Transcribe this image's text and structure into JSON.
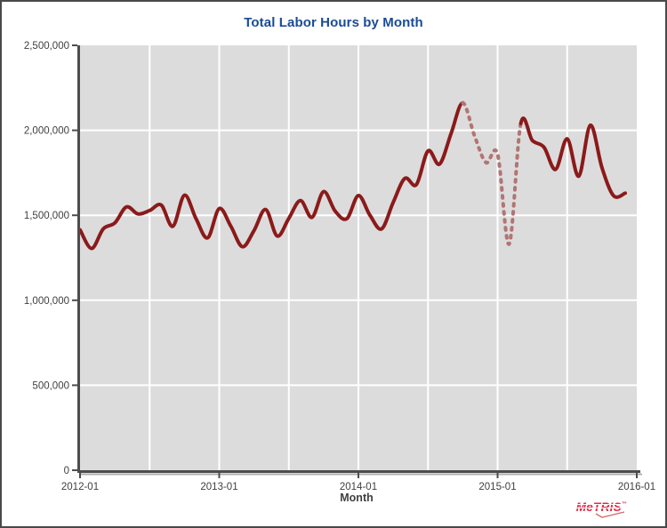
{
  "colors": {
    "canvas_border": "#4A4A4A",
    "title": "#1A4B96",
    "plot_bg": "#DCDCDC",
    "grid": "#FFFFFF",
    "axis": "#4D4D4D",
    "axis_shadow": "#AFAFAF",
    "tick_label": "#3F3F3F",
    "line": "#8B1A1A",
    "line_dashed": "#B27474",
    "logo": "#E22A46"
  },
  "chart_data": {
    "type": "line",
    "title": "Total Labor Hours by Month",
    "xlabel": "Month",
    "ylabel": "",
    "ylim": [
      0,
      2500000
    ],
    "x_axis_months_total": 48,
    "legend": "none",
    "grid": "on",
    "gridlines": {
      "vertical_every_months": 6,
      "horizontal_every": 500000,
      "color": "#FFFFFF"
    },
    "y_ticks": [
      {
        "value": 0,
        "label": "0"
      },
      {
        "value": 500000,
        "label": "500,000"
      },
      {
        "value": 1000000,
        "label": "1,000,000"
      },
      {
        "value": 1500000,
        "label": "1,500,000"
      },
      {
        "value": 2000000,
        "label": "2,000,000"
      },
      {
        "value": 2500000,
        "label": "2,500,000"
      }
    ],
    "x_ticks": [
      {
        "month_index": 0,
        "label": "2012-01"
      },
      {
        "month_index": 12,
        "label": "2013-01"
      },
      {
        "month_index": 24,
        "label": "2014-01"
      },
      {
        "month_index": 36,
        "label": "2015-01"
      },
      {
        "month_index": 48,
        "label": "2016-01"
      }
    ],
    "series": [
      {
        "name": "Total Labor Hours",
        "color": "#8B1A1A",
        "dashed_color": "#B27474",
        "dashed_from": "2014-10",
        "dashed_to": "2015-03",
        "points": [
          {
            "month": "2012-01",
            "value": 1414000
          },
          {
            "month": "2012-02",
            "value": 1305000
          },
          {
            "month": "2012-03",
            "value": 1420000
          },
          {
            "month": "2012-04",
            "value": 1455000
          },
          {
            "month": "2012-05",
            "value": 1549000
          },
          {
            "month": "2012-06",
            "value": 1508000
          },
          {
            "month": "2012-07",
            "value": 1528000
          },
          {
            "month": "2012-08",
            "value": 1560000
          },
          {
            "month": "2012-09",
            "value": 1435000
          },
          {
            "month": "2012-10",
            "value": 1618000
          },
          {
            "month": "2012-11",
            "value": 1480000
          },
          {
            "month": "2012-12",
            "value": 1367000
          },
          {
            "month": "2013-01",
            "value": 1540000
          },
          {
            "month": "2013-02",
            "value": 1436000
          },
          {
            "month": "2013-03",
            "value": 1315000
          },
          {
            "month": "2013-04",
            "value": 1410000
          },
          {
            "month": "2013-05",
            "value": 1534000
          },
          {
            "month": "2013-06",
            "value": 1378000
          },
          {
            "month": "2013-07",
            "value": 1482000
          },
          {
            "month": "2013-08",
            "value": 1587000
          },
          {
            "month": "2013-09",
            "value": 1488000
          },
          {
            "month": "2013-10",
            "value": 1639000
          },
          {
            "month": "2013-11",
            "value": 1524000
          },
          {
            "month": "2013-12",
            "value": 1480000
          },
          {
            "month": "2014-01",
            "value": 1616000
          },
          {
            "month": "2014-02",
            "value": 1500000
          },
          {
            "month": "2014-03",
            "value": 1420000
          },
          {
            "month": "2014-04",
            "value": 1576000
          },
          {
            "month": "2014-05",
            "value": 1717000
          },
          {
            "month": "2014-06",
            "value": 1681000
          },
          {
            "month": "2014-07",
            "value": 1879000
          },
          {
            "month": "2014-08",
            "value": 1801000
          },
          {
            "month": "2014-09",
            "value": 1983000
          },
          {
            "month": "2014-10",
            "value": 2161000
          },
          {
            "month": "2014-11",
            "value": 1970000
          },
          {
            "month": "2014-12",
            "value": 1810000
          },
          {
            "month": "2015-01",
            "value": 1860000
          },
          {
            "month": "2015-02",
            "value": 1331000
          },
          {
            "month": "2015-03",
            "value": 2040000
          },
          {
            "month": "2015-04",
            "value": 1940000
          },
          {
            "month": "2015-05",
            "value": 1900000
          },
          {
            "month": "2015-06",
            "value": 1770000
          },
          {
            "month": "2015-07",
            "value": 1950000
          },
          {
            "month": "2015-08",
            "value": 1730000
          },
          {
            "month": "2015-09",
            "value": 2030000
          },
          {
            "month": "2015-10",
            "value": 1780000
          },
          {
            "month": "2015-11",
            "value": 1615000
          },
          {
            "month": "2015-12",
            "value": 1630000
          }
        ]
      }
    ]
  },
  "logo": {
    "text": "MeTRIS",
    "trademark": "™"
  }
}
